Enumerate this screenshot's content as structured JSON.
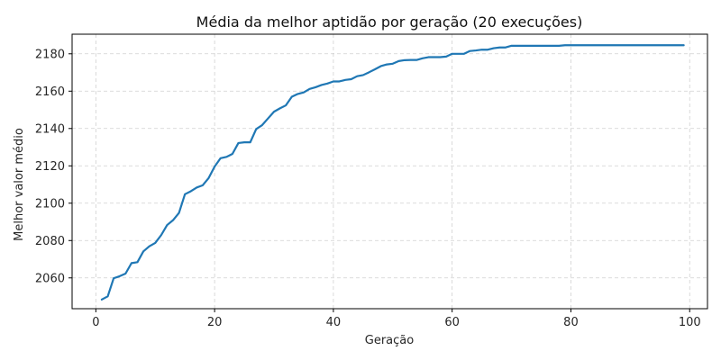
{
  "chart_data": {
    "type": "line",
    "title": "Média da melhor aptidão por geração (20 execuções)",
    "xlabel": "Geração",
    "ylabel": "Melhor valor médio",
    "xlim": [
      -4,
      103
    ],
    "ylim": [
      2043.5,
      2190.5
    ],
    "xticks": [
      0,
      20,
      40,
      60,
      80,
      100
    ],
    "yticks": [
      2060,
      2080,
      2100,
      2120,
      2140,
      2160,
      2180
    ],
    "grid": true,
    "line_color": "#1f77b4",
    "series": [
      {
        "x": [
          1,
          2,
          3,
          4,
          5,
          6,
          7,
          8,
          9,
          10,
          11,
          12,
          13,
          14,
          15,
          16,
          17,
          18,
          19,
          20,
          21,
          22,
          23,
          24,
          25,
          26,
          27,
          28,
          29,
          30,
          31,
          32,
          33,
          34,
          35,
          36,
          37,
          38,
          39,
          40,
          41,
          42,
          43,
          44,
          45,
          46,
          47,
          48,
          49,
          50,
          51,
          52,
          53,
          54,
          55,
          56,
          57,
          58,
          59,
          60,
          61,
          62,
          63,
          64,
          65,
          66,
          67,
          68,
          69,
          70,
          71,
          72,
          73,
          74,
          75,
          76,
          77,
          78,
          79,
          80,
          81,
          82,
          83,
          84,
          85,
          86,
          87,
          88,
          89,
          90,
          91,
          92,
          93,
          94,
          95,
          96,
          97,
          98,
          99
        ],
        "values": [
          2048.4,
          2050.1,
          2059.8,
          2060.9,
          2062.3,
          2067.9,
          2068.4,
          2074.2,
          2076.9,
          2078.7,
          2082.9,
          2088.3,
          2090.9,
          2094.8,
          2104.8,
          2106.4,
          2108.4,
          2109.6,
          2113.5,
          2119.6,
          2124.1,
          2124.8,
          2126.4,
          2132.2,
          2132.6,
          2132.6,
          2139.7,
          2141.8,
          2145.4,
          2149.0,
          2150.8,
          2152.4,
          2157.0,
          2158.5,
          2159.3,
          2161.2,
          2162.1,
          2163.3,
          2164.1,
          2165.2,
          2165.2,
          2166.0,
          2166.4,
          2168.0,
          2168.6,
          2170.1,
          2171.7,
          2173.4,
          2174.3,
          2174.7,
          2176.1,
          2176.6,
          2176.7,
          2176.7,
          2177.6,
          2178.2,
          2178.2,
          2178.2,
          2178.5,
          2180.0,
          2180.0,
          2180.0,
          2181.5,
          2181.8,
          2182.2,
          2182.2,
          2183.0,
          2183.4,
          2183.4,
          2184.3,
          2184.3,
          2184.3,
          2184.3,
          2184.3,
          2184.3,
          2184.3,
          2184.3,
          2184.3,
          2184.6,
          2184.6,
          2184.6,
          2184.6,
          2184.6,
          2184.6,
          2184.6,
          2184.6,
          2184.6,
          2184.6,
          2184.6,
          2184.6,
          2184.6,
          2184.6,
          2184.6,
          2184.6,
          2184.6,
          2184.6,
          2184.6,
          2184.6,
          2184.6
        ]
      }
    ]
  }
}
